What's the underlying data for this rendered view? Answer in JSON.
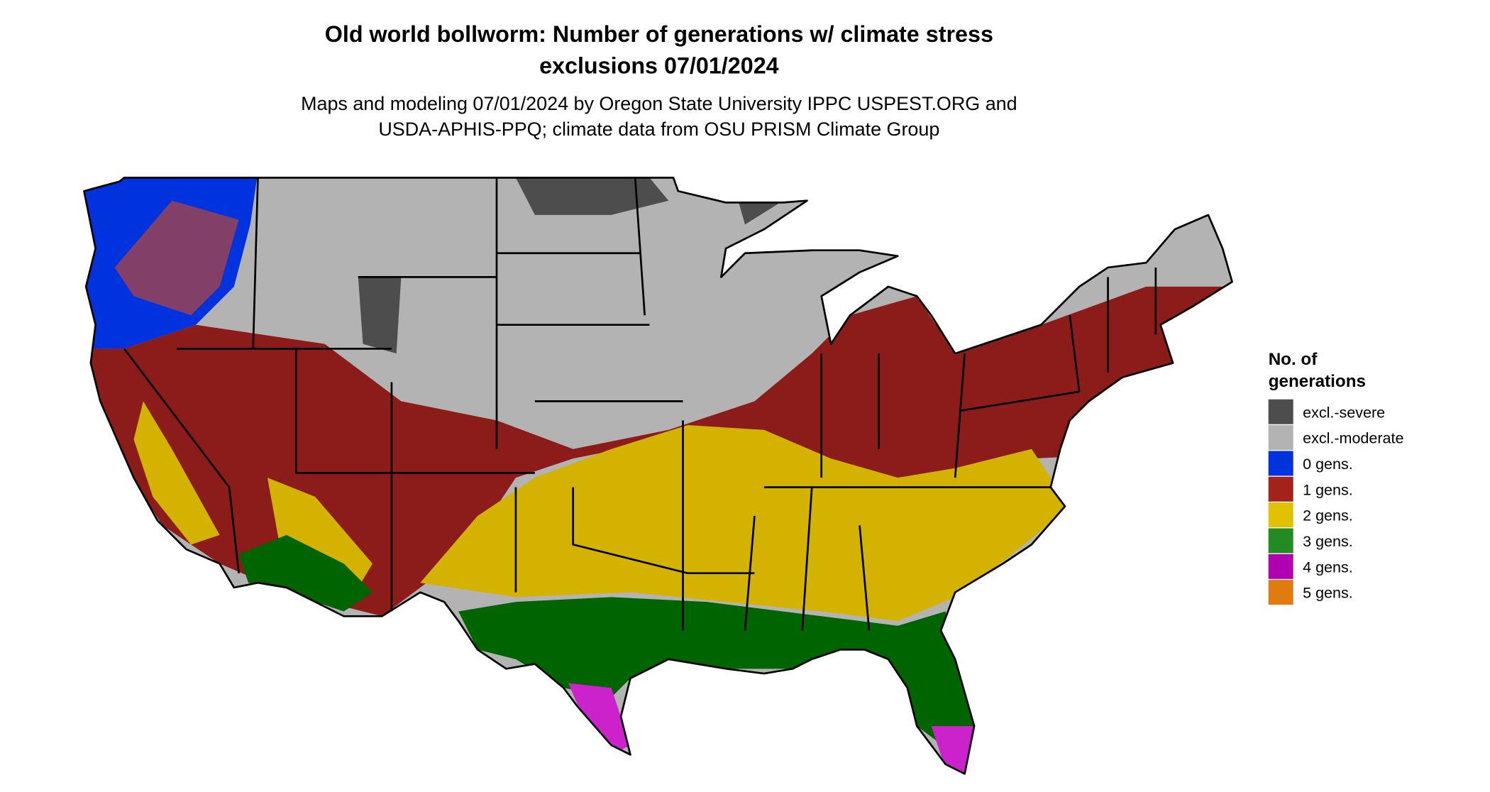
{
  "title": [
    "Old world bollworm: Number of generations w/ climate stress",
    "exclusions 07/01/2024"
  ],
  "subtitle": [
    "Maps and modeling 07/01/2024 by Oregon State University IPPC USPEST.ORG and",
    "USDA-APHIS-PPQ; climate data from OSU PRISM Climate Group"
  ],
  "legend": {
    "title": [
      "No. of",
      "generations"
    ],
    "items": [
      {
        "label": "excl.-severe",
        "color": "#4d4d4d"
      },
      {
        "label": "excl.-moderate",
        "color": "#b3b3b3"
      },
      {
        "label": "0 gens.",
        "color": "#0033dd"
      },
      {
        "label": "1 gens.",
        "color": "#a3221a"
      },
      {
        "label": "2 gens.",
        "color": "#e0c200"
      },
      {
        "label": "3 gens.",
        "color": "#228b22"
      },
      {
        "label": "4 gens.",
        "color": "#b000b0"
      },
      {
        "label": "5 gens.",
        "color": "#e07b10"
      }
    ]
  }
}
